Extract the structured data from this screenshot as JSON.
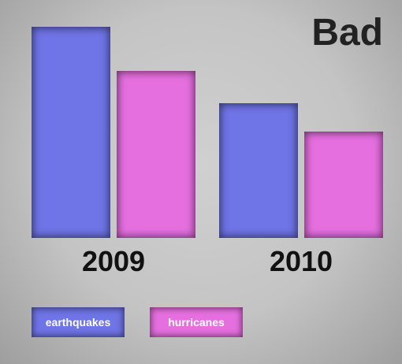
{
  "chart_data": {
    "type": "bar",
    "title": "Bad",
    "categories": [
      "2009",
      "2010"
    ],
    "series": [
      {
        "name": "earthquakes",
        "color": "#6f74e6",
        "values": [
          268,
          171
        ]
      },
      {
        "name": "hurricanes",
        "color": "#e66fe0",
        "values": [
          212,
          135
        ]
      }
    ],
    "ylim": [
      0,
      268
    ]
  }
}
